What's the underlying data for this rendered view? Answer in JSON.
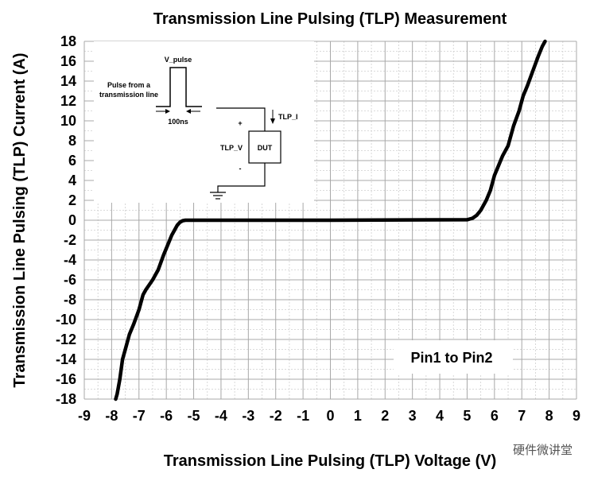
{
  "chart_data": {
    "type": "line",
    "title": "Transmission Line Pulsing (TLP) Measurement",
    "xlabel": "Transmission Line Pulsing (TLP) Voltage (V)",
    "ylabel": "Transmission Line Pulsing (TLP) Current (A)",
    "xlim": [
      -9,
      9
    ],
    "ylim": [
      -18,
      18
    ],
    "xticks": [
      -9,
      -8,
      -7,
      -6,
      -5,
      -4,
      -3,
      -2,
      -1,
      0,
      1,
      2,
      3,
      4,
      5,
      6,
      7,
      8,
      9
    ],
    "yticks": [
      -18,
      -16,
      -14,
      -12,
      -10,
      -8,
      -6,
      -4,
      -2,
      0,
      2,
      4,
      6,
      8,
      10,
      12,
      14,
      16,
      18
    ],
    "grid": true,
    "annotation": "Pin1 to Pin2",
    "series": [
      {
        "name": "Pin1 to Pin2",
        "x": [
          -7.85,
          -7.8,
          -7.7,
          -7.6,
          -7.5,
          -7.35,
          -7.2,
          -7.0,
          -6.9,
          -6.85,
          -6.75,
          -6.5,
          -6.3,
          -6.1,
          -5.95,
          -5.8,
          -5.7,
          -5.6,
          -5.5,
          -5.4,
          -5.3,
          -5.0,
          0,
          5.0,
          5.2,
          5.35,
          5.5,
          5.7,
          5.85,
          6.0,
          6.15,
          6.3,
          6.5,
          6.7,
          6.9,
          7.05,
          7.2,
          7.4,
          7.6,
          7.75,
          7.85
        ],
        "y": [
          -18,
          -17.5,
          -16,
          -14,
          -13,
          -11.5,
          -10.5,
          -9,
          -8,
          -7.5,
          -7,
          -6,
          -5,
          -3.5,
          -2.5,
          -1.5,
          -1,
          -0.5,
          -0.2,
          -0.05,
          0,
          0,
          0,
          0.05,
          0.2,
          0.5,
          1,
          2,
          3,
          4.5,
          5.5,
          6.5,
          7.5,
          9.5,
          11,
          12.5,
          13.5,
          15,
          16.5,
          17.5,
          18
        ]
      }
    ]
  },
  "inset": {
    "v_pulse": "V_pulse",
    "pulse_label_line1": "Pulse from a",
    "pulse_label_line2": "transmission line",
    "width_label": "100ns",
    "tlp_i": "TLP_I",
    "tlp_v": "TLP_V",
    "plus": "+",
    "minus": "-",
    "dut": "DUT"
  },
  "watermark": "硬件微讲堂"
}
